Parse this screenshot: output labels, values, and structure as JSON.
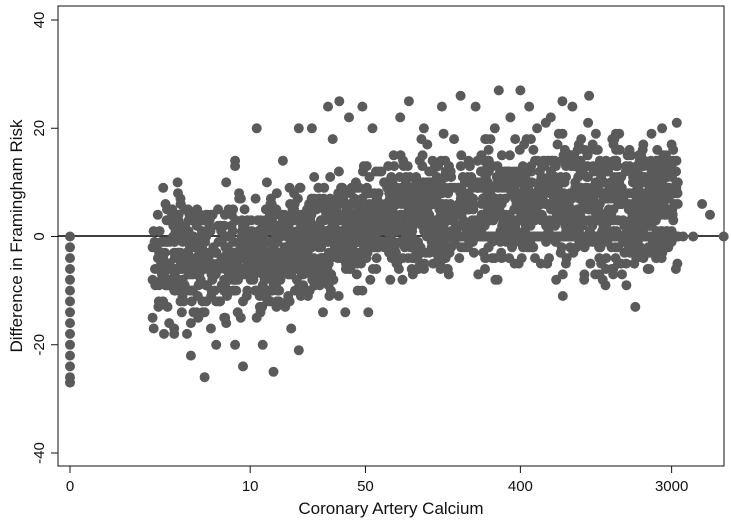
{
  "chart_data": {
    "type": "scatter",
    "title": "",
    "xlabel": "Coronary Artery Calcium",
    "ylabel": "Difference in Framingham Risk",
    "x_scale": "log(1 + CAC)",
    "xlim": [
      0,
      5000
    ],
    "ylim": [
      -42,
      42
    ],
    "x_ticks": [
      {
        "value": 0,
        "label": "0"
      },
      {
        "value": 10,
        "label": "10"
      },
      {
        "value": 50,
        "label": "50"
      },
      {
        "value": 400,
        "label": "400"
      },
      {
        "value": 3000,
        "label": "3000"
      }
    ],
    "y_ticks": [
      {
        "value": -40,
        "label": "-40"
      },
      {
        "value": -20,
        "label": "-20"
      },
      {
        "value": 0,
        "label": "0"
      },
      {
        "value": 20,
        "label": "20"
      },
      {
        "value": 40,
        "label": "40"
      }
    ],
    "reference_line_y": 0,
    "grid": false,
    "legend": "none",
    "marker_color": "#5a5a5a",
    "approx_point_count": 2600,
    "series": [
      {
        "values": [
          [
            0,
            0
          ],
          [
            0,
            -2
          ],
          [
            0,
            -4
          ],
          [
            0,
            -6
          ],
          [
            0,
            -8
          ],
          [
            0,
            -10
          ],
          [
            0,
            -12
          ],
          [
            0,
            -14
          ],
          [
            0,
            -16
          ],
          [
            0,
            -18
          ],
          [
            0,
            -20
          ],
          [
            0,
            -22
          ],
          [
            0,
            -24
          ],
          [
            0,
            -26
          ],
          [
            0,
            -27
          ],
          [
            2,
            -2
          ],
          [
            2,
            -8
          ],
          [
            2,
            -15
          ],
          [
            3,
            -3
          ],
          [
            3,
            -9
          ],
          [
            3,
            -17
          ],
          [
            3,
            -18
          ],
          [
            4,
            -4
          ],
          [
            4,
            -10
          ],
          [
            4,
            -16
          ],
          [
            4,
            -22
          ],
          [
            5,
            -6
          ],
          [
            5,
            -14
          ],
          [
            5,
            -26
          ],
          [
            6,
            -3
          ],
          [
            6,
            -12
          ],
          [
            6,
            -20
          ],
          [
            7,
            -5
          ],
          [
            7,
            -16
          ],
          [
            7,
            10
          ],
          [
            8,
            -8
          ],
          [
            8,
            -20
          ],
          [
            8,
            14
          ],
          [
            8,
            13
          ],
          [
            9,
            -12
          ],
          [
            9,
            -24
          ],
          [
            9,
            2
          ],
          [
            11,
            -6
          ],
          [
            11,
            -15
          ],
          [
            11,
            20
          ],
          [
            12,
            -10
          ],
          [
            12,
            -20
          ],
          [
            13,
            -4
          ],
          [
            14,
            -25
          ],
          [
            15,
            -8
          ],
          [
            16,
            14
          ],
          [
            17,
            -12
          ],
          [
            18,
            -17
          ],
          [
            20,
            -21
          ],
          [
            20,
            20
          ],
          [
            22,
            -2
          ],
          [
            24,
            20
          ],
          [
            26,
            6
          ],
          [
            28,
            -14
          ],
          [
            30,
            24
          ],
          [
            32,
            18
          ],
          [
            35,
            25
          ],
          [
            38,
            -14
          ],
          [
            40,
            22
          ],
          [
            45,
            -10
          ],
          [
            48,
            24
          ],
          [
            52,
            -14
          ],
          [
            55,
            20
          ],
          [
            60,
            12
          ],
          [
            70,
            -8
          ],
          [
            80,
            22
          ],
          [
            90,
            25
          ],
          [
            100,
            -6
          ],
          [
            110,
            20
          ],
          [
            120,
            8
          ],
          [
            140,
            24
          ],
          [
            150,
            -2
          ],
          [
            180,
            26
          ],
          [
            200,
            14
          ],
          [
            220,
            24
          ],
          [
            250,
            18
          ],
          [
            300,
            27
          ],
          [
            350,
            22
          ],
          [
            400,
            27
          ],
          [
            420,
            10
          ],
          [
            450,
            24
          ],
          [
            500,
            20
          ],
          [
            550,
            14
          ],
          [
            600,
            22
          ],
          [
            700,
            25
          ],
          [
            750,
            6
          ],
          [
            800,
            24
          ],
          [
            900,
            18
          ],
          [
            1000,
            26
          ],
          [
            1100,
            4
          ],
          [
            1200,
            10
          ],
          [
            1400,
            18
          ],
          [
            1600,
            2
          ],
          [
            1800,
            8
          ],
          [
            2000,
            10
          ],
          [
            2200,
            4
          ],
          [
            2500,
            10
          ],
          [
            3000,
            13
          ],
          [
            3200,
            8
          ],
          [
            3500,
            0
          ],
          [
            4000,
            0
          ],
          [
            4500,
            6
          ],
          [
            5000,
            4
          ],
          [
            6000,
            0
          ],
          [
            7500,
            2
          ],
          [
            8000,
            0
          ]
        ]
      }
    ]
  }
}
